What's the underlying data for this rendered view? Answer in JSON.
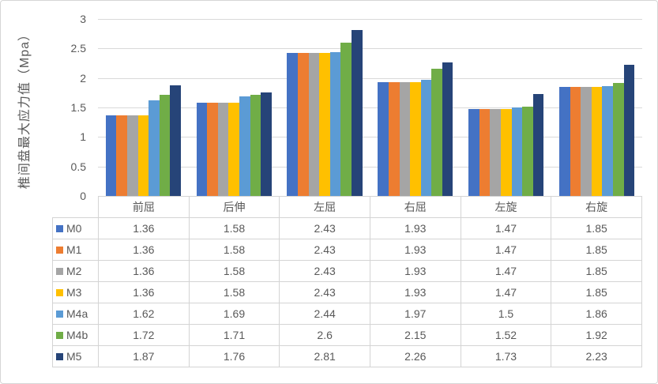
{
  "colors": {
    "text": "#595959",
    "gridline": "#d9d9d9",
    "table_border": "#d4d4d4",
    "frame_border": "#d6d6d6",
    "background": "#ffffff"
  },
  "chart_data": {
    "type": "bar",
    "title": "",
    "xlabel": "",
    "ylabel": "椎间盘最大应力值（Mpa）",
    "ylim": [
      0,
      3
    ],
    "gridline_step": 0.5,
    "grid": true,
    "legend_position": "data-table-left",
    "ytick_labels": [
      "0",
      "0.5",
      "1",
      "1.5",
      "2",
      "2.5",
      "3"
    ],
    "categories": [
      "前屈",
      "后伸",
      "左屈",
      "右屈",
      "左旋",
      "右旋"
    ],
    "series": [
      {
        "name": "M0",
        "color": "#4472C4",
        "values": [
          1.36,
          1.58,
          2.43,
          1.93,
          1.47,
          1.85
        ]
      },
      {
        "name": "M1",
        "color": "#ED7D31",
        "values": [
          1.36,
          1.58,
          2.43,
          1.93,
          1.47,
          1.85
        ]
      },
      {
        "name": "M2",
        "color": "#A5A5A5",
        "values": [
          1.36,
          1.58,
          2.43,
          1.93,
          1.47,
          1.85
        ]
      },
      {
        "name": "M3",
        "color": "#FFC000",
        "values": [
          1.36,
          1.58,
          2.43,
          1.93,
          1.47,
          1.85
        ]
      },
      {
        "name": "M4a",
        "color": "#5B9BD5",
        "values": [
          1.62,
          1.69,
          2.44,
          1.97,
          1.5,
          1.86
        ]
      },
      {
        "name": "M4b",
        "color": "#70AD47",
        "values": [
          1.72,
          1.71,
          2.6,
          2.15,
          1.52,
          1.92
        ]
      },
      {
        "name": "M5",
        "color": "#264478",
        "values": [
          1.87,
          1.76,
          2.81,
          2.26,
          1.73,
          2.23
        ]
      }
    ]
  }
}
